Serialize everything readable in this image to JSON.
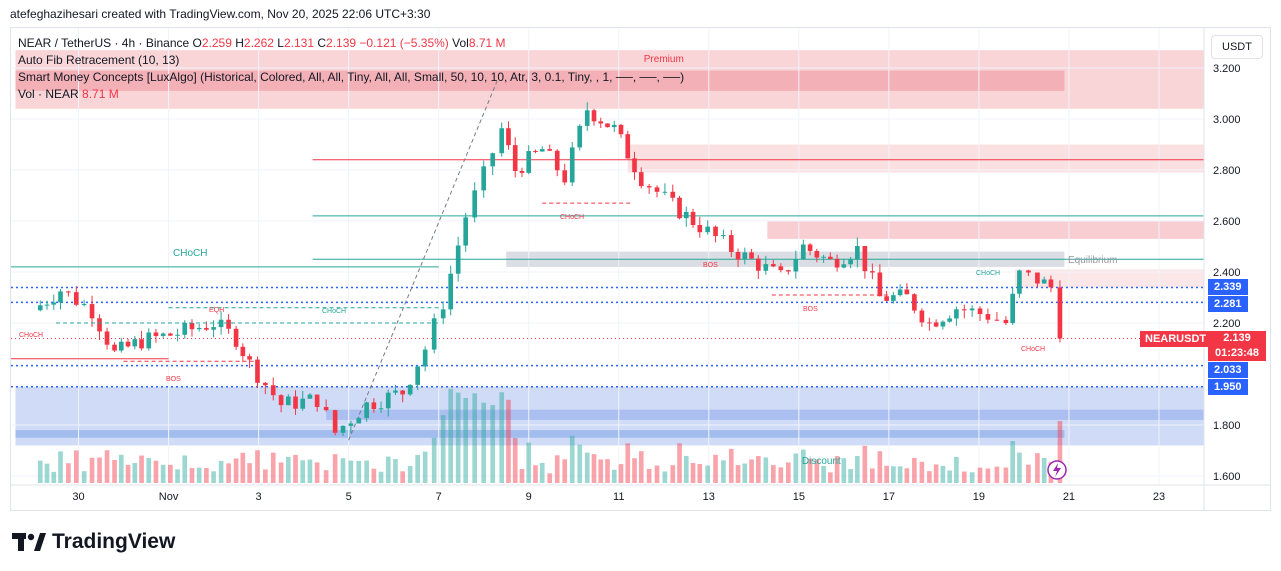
{
  "header": {
    "caption": "atefeghazihesari created with TradingView.com, Nov 20, 2025 22:06 UTC+3:30"
  },
  "legend": {
    "symbol": "NEAR / TetherUS · 4h · Binance",
    "o_label": "O",
    "o": "2.259",
    "h_label": "H",
    "h": "2.262",
    "l_label": "L",
    "l": "2.131",
    "c_label": "C",
    "c": "2.139",
    "change": "−0.121 (−5.35%)",
    "vol_label": "Vol",
    "vol": "8.71 M",
    "indicator1": "Auto Fib Retracement (10, 13)",
    "indicator2": "Smart Money Concepts [LuxAlgo] (Historical, Colored, All, All, Tiny, All, All, Small, 50, 10, 10, Atr, 3, 0.1, Tiny, , 1, ──, ──, ──)",
    "indicator3": "Vol · NEAR",
    "indicator3_value": "8.71 M"
  },
  "axis": {
    "currency": "USDT"
  },
  "price_tags": {
    "t1": "2.339",
    "t2": "2.281",
    "t3": "2.033",
    "t4": "1.950",
    "current": "2.139",
    "countdown": "01:23:48",
    "symbol_tag": "NEARUSDT"
  },
  "colors": {
    "up": "#26a69a",
    "down": "#f23645",
    "premium_zone": "#f7c7cb",
    "discount_zone": "#9fb7ef",
    "equilibrium_zone": "#d1d4dc",
    "blue_dotted": "#2962ff"
  },
  "brand": {
    "name": "TradingView"
  },
  "chart_data": {
    "type": "candlestick",
    "title": "NEAR / TetherUS · 4h · Binance",
    "ylabel": "USDT",
    "ylim": [
      1.58,
      3.29
    ],
    "y_ticks": [
      "3.200",
      "3.000",
      "2.800",
      "2.600",
      "2.400",
      "2.200",
      "1.800",
      "1.600"
    ],
    "y_tick_values": [
      3.2,
      3.0,
      2.8,
      2.6,
      2.4,
      2.2,
      1.8,
      1.6
    ],
    "x_ticks": [
      "30",
      "Nov",
      "3",
      "5",
      "7",
      "9",
      "11",
      "13",
      "15",
      "17",
      "19",
      "21",
      "23"
    ],
    "x_tick_days": [
      30,
      32,
      34,
      36,
      38,
      40,
      42,
      44,
      46,
      48,
      50,
      52,
      54
    ],
    "x_units": "days since Oct 0 (Oct 30 = 30, Nov 1 = 32)",
    "annotations": {
      "premium": "Premium",
      "equilibrium": "Equilibrium",
      "discount": "Discount",
      "choch": "CHoCH",
      "bos": "BOS",
      "eqh": "EQH"
    },
    "levels": {
      "premium_top": 3.27,
      "premium_bottom": 3.04,
      "equilibrium_top": 2.48,
      "equilibrium_bottom": 2.42,
      "discount_top": 1.95,
      "discount_bottom": 1.72,
      "upper_red_zone": [
        2.9,
        2.79
      ],
      "mid_red_zone": [
        2.6,
        2.53
      ],
      "lower_red_zone": [
        2.41,
        2.34
      ],
      "red_line": 2.84,
      "green_line_1": 2.62,
      "green_line_2": 2.45,
      "green_line_left": 2.42,
      "blue_dotted_1": 2.339,
      "blue_dotted_2": 2.281,
      "blue_dotted_3": 2.033,
      "blue_dotted_4": 1.95,
      "current_price": 2.139
    },
    "waypoints": [
      {
        "d": 29.0,
        "p": 2.25
      },
      {
        "d": 29.6,
        "p": 2.33
      },
      {
        "d": 30.3,
        "p": 2.25
      },
      {
        "d": 30.8,
        "p": 2.08
      },
      {
        "d": 31.4,
        "p": 2.13
      },
      {
        "d": 32.2,
        "p": 2.16
      },
      {
        "d": 33.0,
        "p": 2.2
      },
      {
        "d": 33.5,
        "p": 2.14
      },
      {
        "d": 33.8,
        "p": 2.04
      },
      {
        "d": 34.5,
        "p": 1.88
      },
      {
        "d": 35.3,
        "p": 1.9
      },
      {
        "d": 35.7,
        "p": 1.77
      },
      {
        "d": 36.4,
        "p": 1.88
      },
      {
        "d": 37.2,
        "p": 1.93
      },
      {
        "d": 37.7,
        "p": 2.1
      },
      {
        "d": 38.1,
        "p": 2.28
      },
      {
        "d": 38.6,
        "p": 2.62
      },
      {
        "d": 39.0,
        "p": 2.78
      },
      {
        "d": 39.4,
        "p": 2.96
      },
      {
        "d": 39.7,
        "p": 2.8
      },
      {
        "d": 40.3,
        "p": 2.88
      },
      {
        "d": 40.8,
        "p": 2.77
      },
      {
        "d": 41.3,
        "p": 3.04
      },
      {
        "d": 41.9,
        "p": 2.96
      },
      {
        "d": 42.5,
        "p": 2.77
      },
      {
        "d": 43.2,
        "p": 2.66
      },
      {
        "d": 43.8,
        "p": 2.58
      },
      {
        "d": 44.5,
        "p": 2.49
      },
      {
        "d": 45.1,
        "p": 2.43
      },
      {
        "d": 45.6,
        "p": 2.38
      },
      {
        "d": 46.1,
        "p": 2.5
      },
      {
        "d": 46.7,
        "p": 2.44
      },
      {
        "d": 47.3,
        "p": 2.49
      },
      {
        "d": 47.8,
        "p": 2.3
      },
      {
        "d": 48.4,
        "p": 2.3
      },
      {
        "d": 48.9,
        "p": 2.2
      },
      {
        "d": 49.5,
        "p": 2.26
      },
      {
        "d": 50.2,
        "p": 2.23
      },
      {
        "d": 50.6,
        "p": 2.2
      },
      {
        "d": 50.9,
        "p": 2.39
      },
      {
        "d": 51.3,
        "p": 2.37
      },
      {
        "d": 51.6,
        "p": 2.34
      },
      {
        "d": 51.8,
        "p": 2.139
      }
    ],
    "volume_ylim": [
      0,
      2.2
    ],
    "last_volume": "8.71 M"
  }
}
